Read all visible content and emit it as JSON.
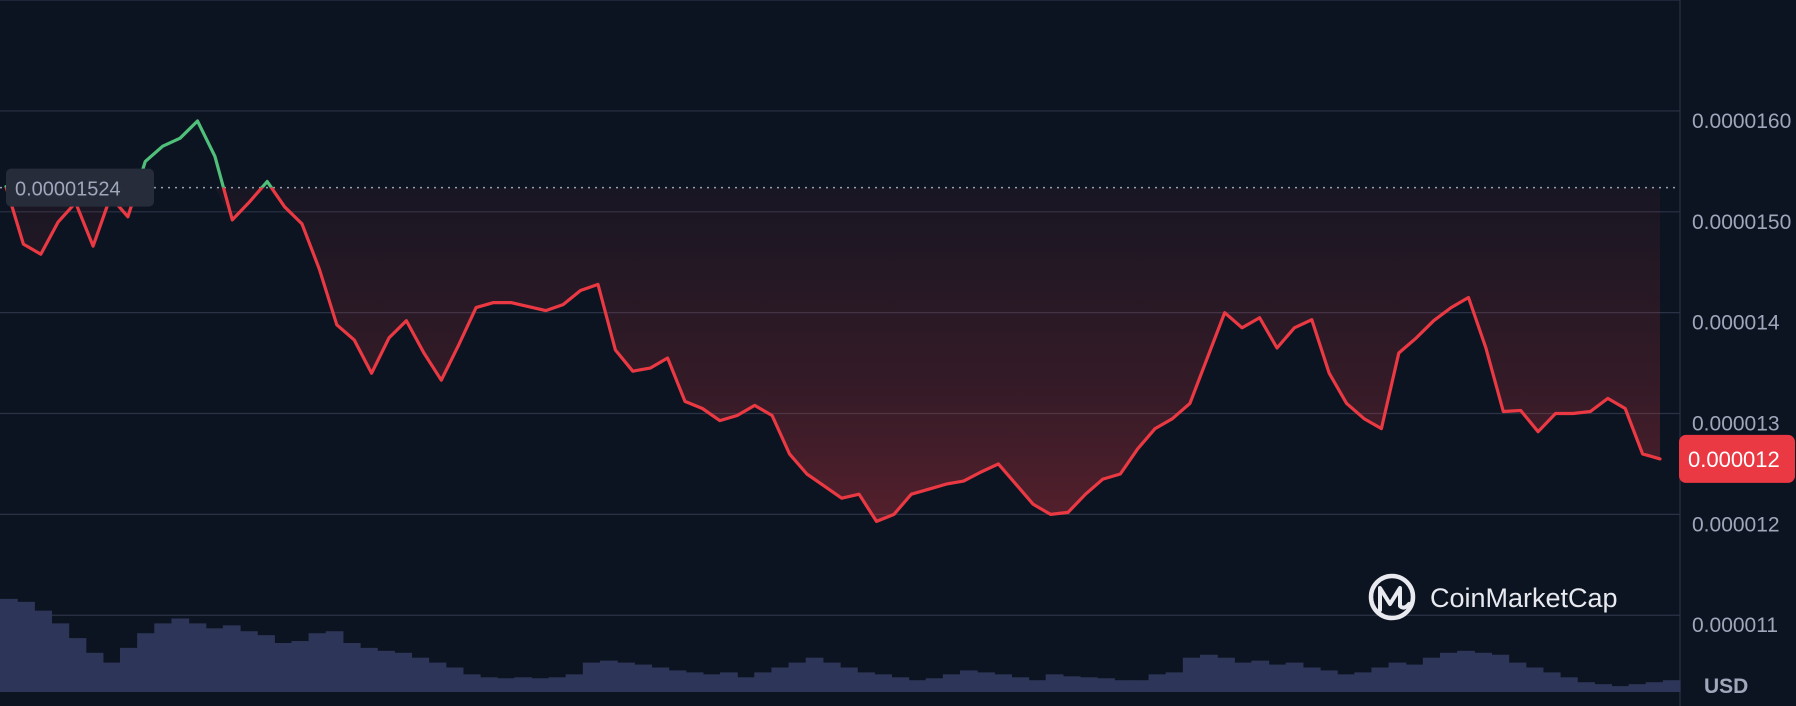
{
  "brand": {
    "name": "CoinMarketCap"
  },
  "currency": "USD",
  "reference_price": {
    "label": "0.00001524",
    "value": 1.524e-05
  },
  "current_price": {
    "label": "0.000012",
    "value": 1.245e-05
  },
  "colors": {
    "background": "#0d1421",
    "up": "#4fbf7a",
    "down": "#ea3943",
    "grid": "#2b3245",
    "volume": "#2d3658",
    "label_bg": "#262c3a"
  },
  "chart_data": {
    "type": "line",
    "title": "",
    "xlabel": "",
    "ylabel": "",
    "currency": "USD",
    "y_ticks": [
      {
        "value": 1.6e-05,
        "label": "0.0000160"
      },
      {
        "value": 1.5e-05,
        "label": "0.0000150"
      },
      {
        "value": 1.4e-05,
        "label": "0.000014"
      },
      {
        "value": 1.3e-05,
        "label": "0.000013"
      },
      {
        "value": 1.2e-05,
        "label": "0.000012"
      },
      {
        "value": 1.1e-05,
        "label": "0.000011"
      }
    ],
    "ylim": [
      1.01e-05,
      1.71e-05
    ],
    "baseline": 1.524e-05,
    "grid": true,
    "series": [
      {
        "values": [
          1.525e-05,
          1.468e-05,
          1.458e-05,
          1.49e-05,
          1.509e-05,
          1.466e-05,
          1.515e-05,
          1.495e-05,
          1.55e-05,
          1.565e-05,
          1.573e-05,
          1.59e-05,
          1.555e-05,
          1.492e-05,
          1.51e-05,
          1.53e-05,
          1.505e-05,
          1.488e-05,
          1.443e-05,
          1.388e-05,
          1.373e-05,
          1.34e-05,
          1.375e-05,
          1.392e-05,
          1.36e-05,
          1.333e-05,
          1.368e-05,
          1.405e-05,
          1.41e-05,
          1.41e-05,
          1.406e-05,
          1.402e-05,
          1.408e-05,
          1.422e-05,
          1.428e-05,
          1.363e-05,
          1.342e-05,
          1.345e-05,
          1.355e-05,
          1.312e-05,
          1.305e-05,
          1.293e-05,
          1.298e-05,
          1.308e-05,
          1.298e-05,
          1.26e-05,
          1.24e-05,
          1.228e-05,
          1.216e-05,
          1.22e-05,
          1.193e-05,
          1.2e-05,
          1.22e-05,
          1.225e-05,
          1.23e-05,
          1.233e-05,
          1.242e-05,
          1.25e-05,
          1.23e-05,
          1.21e-05,
          1.2e-05,
          1.202e-05,
          1.22e-05,
          1.235e-05,
          1.24e-05,
          1.265e-05,
          1.285e-05,
          1.295e-05,
          1.31e-05,
          1.355e-05,
          1.4e-05,
          1.385e-05,
          1.395e-05,
          1.365e-05,
          1.385e-05,
          1.393e-05,
          1.34e-05,
          1.31e-05,
          1.295e-05,
          1.285e-05,
          1.36e-05,
          1.375e-05,
          1.392e-05,
          1.405e-05,
          1.415e-05,
          1.365e-05,
          1.302e-05,
          1.303e-05,
          1.282e-05,
          1.3e-05,
          1.3e-05,
          1.302e-05,
          1.315e-05,
          1.305e-05,
          1.26e-05,
          1.255e-05
        ]
      }
    ],
    "volume": [
      0.95,
      0.92,
      0.83,
      0.7,
      0.55,
      0.4,
      0.3,
      0.45,
      0.6,
      0.7,
      0.75,
      0.7,
      0.65,
      0.68,
      0.62,
      0.58,
      0.5,
      0.52,
      0.6,
      0.62,
      0.5,
      0.45,
      0.42,
      0.4,
      0.35,
      0.3,
      0.25,
      0.18,
      0.15,
      0.14,
      0.15,
      0.14,
      0.15,
      0.18,
      0.3,
      0.32,
      0.3,
      0.28,
      0.25,
      0.22,
      0.2,
      0.18,
      0.2,
      0.15,
      0.2,
      0.25,
      0.3,
      0.35,
      0.3,
      0.25,
      0.2,
      0.18,
      0.15,
      0.12,
      0.14,
      0.18,
      0.22,
      0.2,
      0.18,
      0.15,
      0.12,
      0.18,
      0.16,
      0.15,
      0.14,
      0.12,
      0.12,
      0.18,
      0.2,
      0.35,
      0.38,
      0.35,
      0.3,
      0.32,
      0.28,
      0.3,
      0.25,
      0.22,
      0.18,
      0.2,
      0.25,
      0.3,
      0.28,
      0.35,
      0.4,
      0.42,
      0.4,
      0.38,
      0.3,
      0.25,
      0.2,
      0.15,
      0.1,
      0.08,
      0.06,
      0.08,
      0.1,
      0.12
    ]
  }
}
